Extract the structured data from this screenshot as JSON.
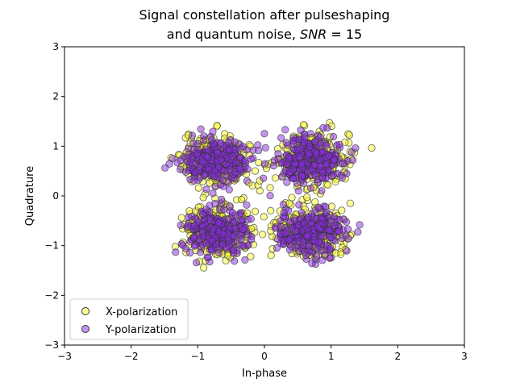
{
  "chart_data": {
    "type": "scatter",
    "title_line1": "Signal constellation after pulseshaping",
    "title_line2_prefix": "and quantum noise, ",
    "title_line2_math": "SNR",
    "title_line2_suffix": " = 15",
    "xlabel": "In-phase",
    "ylabel": "Quadrature",
    "xlim": [
      -3,
      3
    ],
    "ylim": [
      -3,
      3
    ],
    "xticks": [
      -3,
      -2,
      -1,
      0,
      1,
      2,
      3
    ],
    "yticks": [
      -3,
      -2,
      -1,
      0,
      1,
      2,
      3
    ],
    "tick_labels": [
      "−3",
      "−2",
      "−1",
      "0",
      "1",
      "2",
      "3"
    ],
    "grid": false,
    "legend_position": "lower-left",
    "constellation_centers": [
      [
        -0.71,
        0.71
      ],
      [
        0.71,
        0.71
      ],
      [
        -0.71,
        -0.71
      ],
      [
        0.71,
        -0.71
      ]
    ],
    "cluster_spread": [
      0.26,
      0.26
    ],
    "series": [
      {
        "name": "X-polarization",
        "color": "#ffff33",
        "edgecolor": "#333333"
      },
      {
        "name": "Y-polarization",
        "color": "#8a2be2",
        "edgecolor": "#333333"
      }
    ]
  }
}
